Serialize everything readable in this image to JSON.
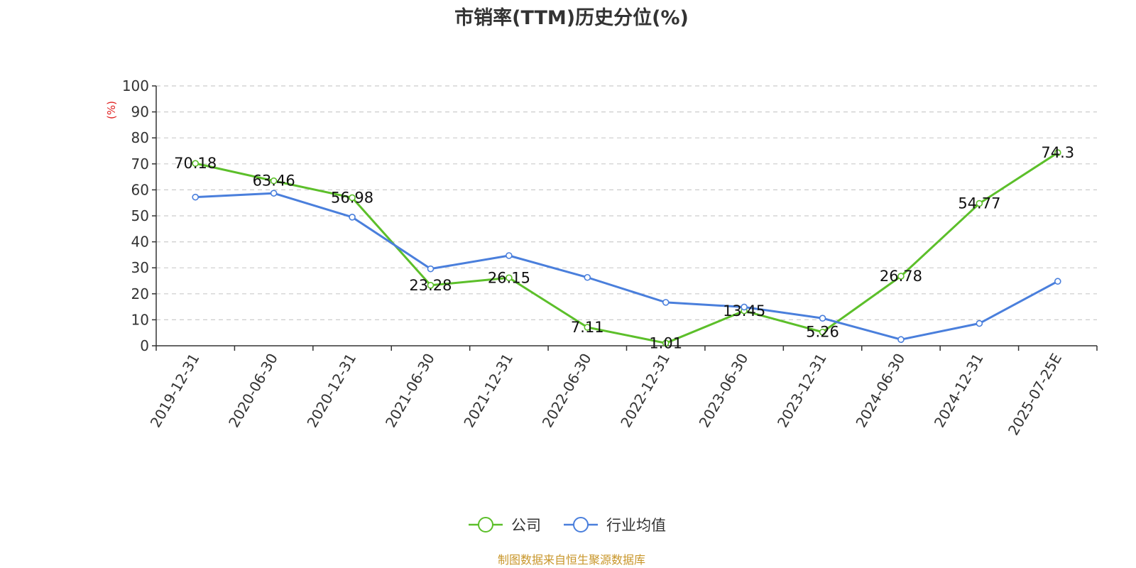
{
  "chart_data": {
    "type": "line",
    "title": "市销率(TTM)历史分位(%)",
    "ylabel": "(%)",
    "xlabel": "",
    "ylim": [
      0,
      100
    ],
    "yticks": [
      0,
      10,
      20,
      30,
      40,
      50,
      60,
      70,
      80,
      90,
      100
    ],
    "grid": true,
    "legend_position": "bottom",
    "categories": [
      "2019-12-31",
      "2020-06-30",
      "2020-12-31",
      "2021-06-30",
      "2021-12-31",
      "2022-06-30",
      "2022-12-31",
      "2023-06-30",
      "2023-12-31",
      "2024-06-30",
      "2024-12-31",
      "2025-07-25E"
    ],
    "series": [
      {
        "name": "公司",
        "color": "#5cbf2a",
        "values": [
          70.18,
          63.46,
          56.98,
          23.28,
          26.15,
          7.11,
          1.01,
          13.45,
          5.26,
          26.78,
          54.77,
          74.3
        ],
        "labels": [
          "70.18",
          "63.46",
          "56.98",
          "23.28",
          "26.15",
          "7.11",
          "1.01",
          "13.45",
          "5.26",
          "26.78",
          "54.77",
          "74.3"
        ]
      },
      {
        "name": "行业均值",
        "color": "#4a7fdc",
        "values": [
          57.2,
          58.7,
          49.5,
          29.6,
          34.7,
          26.3,
          16.7,
          14.9,
          10.6,
          2.4,
          8.6,
          24.8
        ]
      }
    ],
    "source": "制图数据来自恒生聚源数据库",
    "colors": {
      "ylabel": "#e02020",
      "source": "#c8962a",
      "axis": "#333333",
      "grid": "#cccccc"
    }
  }
}
